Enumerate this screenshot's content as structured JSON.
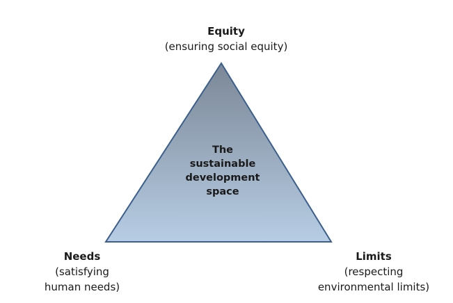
{
  "colors": {
    "triangle_top": "#7b8796",
    "triangle_bottom": "#b7cde4",
    "triangle_stroke": "#3a5f8c",
    "text": "#1a1a1a"
  },
  "center": {
    "lines": [
      "The",
      "sustainable",
      "development",
      "space"
    ]
  },
  "vertices": {
    "equity": {
      "title": "Equity",
      "subtitle_lines": [
        "(ensuring social equity)"
      ]
    },
    "needs": {
      "title": "Needs",
      "subtitle_lines": [
        "(satisfying",
        "human needs)"
      ]
    },
    "limits": {
      "title": "Limits",
      "subtitle_lines": [
        "(respecting",
        "environmental limits)"
      ]
    }
  }
}
